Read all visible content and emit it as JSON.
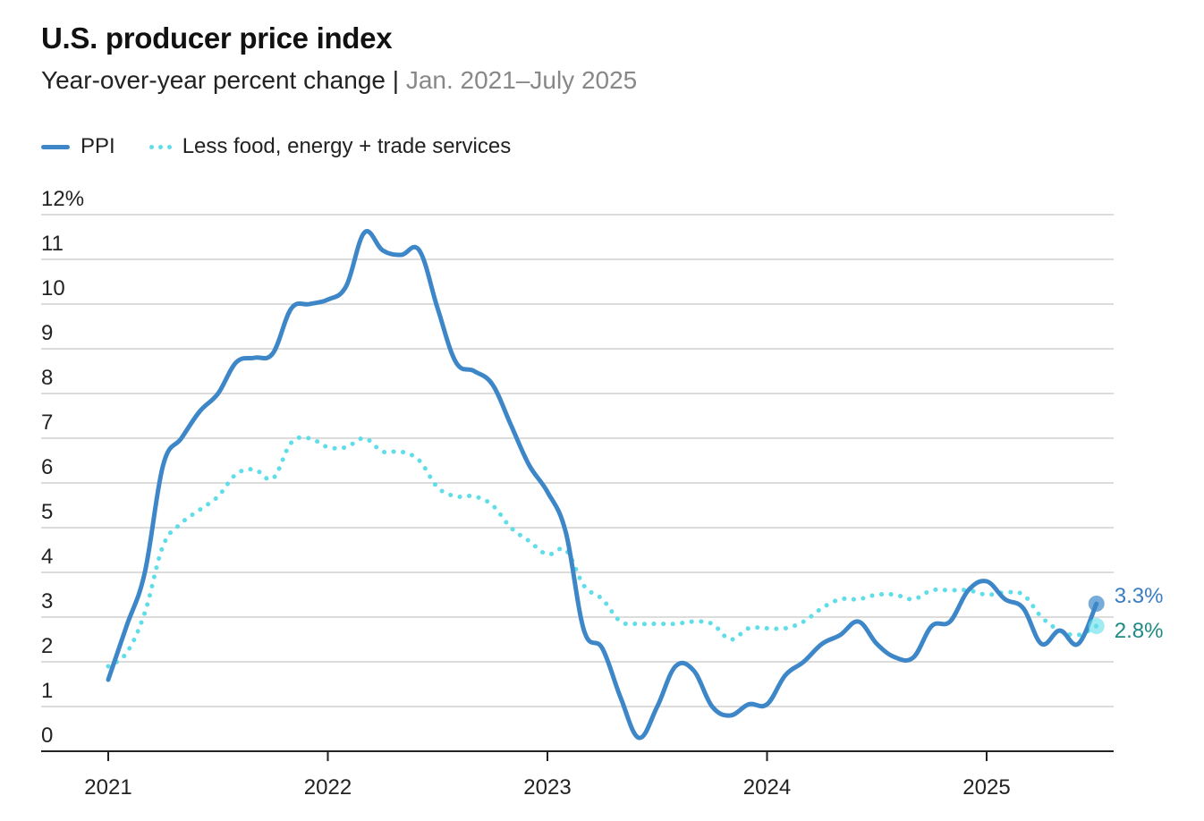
{
  "chart_data": {
    "type": "line",
    "title": "U.S. producer price index",
    "subtitle": "Year-over-year percent change",
    "date_range": "Jan. 2021–July 2025",
    "xlabel": "",
    "ylabel": "",
    "ylim": [
      0,
      12
    ],
    "yticks": [
      "0",
      "1",
      "2",
      "3",
      "4",
      "5",
      "6",
      "7",
      "8",
      "9",
      "10",
      "11",
      "12%"
    ],
    "xticks": [
      "2021",
      "2022",
      "2023",
      "2024",
      "2025"
    ],
    "x_start": "Jan 2021",
    "x_end": "Jul 2025",
    "grid": true,
    "legend_position": "top-left",
    "series": [
      {
        "name": "PPI",
        "style": "solid",
        "color": "#3d87c9",
        "end_label": "3.3%",
        "end_label_color": "#3a7cc2",
        "values": [
          1.6,
          2.8,
          4.0,
          6.4,
          7.0,
          7.6,
          8.0,
          8.7,
          8.8,
          8.9,
          9.9,
          10.0,
          10.1,
          10.4,
          11.6,
          11.2,
          11.1,
          11.2,
          9.9,
          8.7,
          8.5,
          8.2,
          7.3,
          6.4,
          5.8,
          4.9,
          2.7,
          2.3,
          1.2,
          0.3,
          1.0,
          1.9,
          1.8,
          1.0,
          0.8,
          1.05,
          1.05,
          1.7,
          2.0,
          2.4,
          2.6,
          2.9,
          2.4,
          2.1,
          2.1,
          2.8,
          2.9,
          3.6,
          3.8,
          3.4,
          3.2,
          2.4,
          2.7,
          2.4,
          3.3
        ]
      },
      {
        "name": "Less food, energy + trade services",
        "style": "dotted",
        "color": "#5fdde8",
        "end_label": "2.8%",
        "end_label_color": "#1f8a86",
        "values": [
          1.9,
          2.2,
          3.1,
          4.6,
          5.1,
          5.4,
          5.7,
          6.2,
          6.3,
          6.1,
          6.9,
          7.0,
          6.8,
          6.8,
          7.0,
          6.7,
          6.7,
          6.5,
          5.9,
          5.7,
          5.7,
          5.5,
          5.0,
          4.7,
          4.4,
          4.5,
          3.7,
          3.4,
          2.9,
          2.85,
          2.85,
          2.85,
          2.9,
          2.85,
          2.5,
          2.75,
          2.75,
          2.75,
          2.9,
          3.2,
          3.4,
          3.4,
          3.5,
          3.5,
          3.4,
          3.6,
          3.6,
          3.6,
          3.5,
          3.55,
          3.5,
          3.0,
          2.7,
          2.6,
          2.8
        ]
      }
    ]
  }
}
